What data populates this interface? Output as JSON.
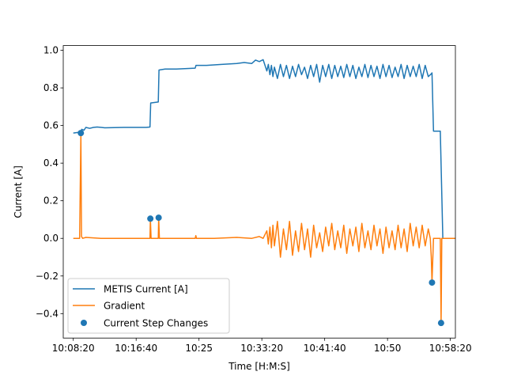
{
  "chart_data": {
    "type": "line",
    "xlabel": "Time [H:M:S]",
    "ylabel": "Current [A]",
    "xlim": [
      "10:07:00",
      "10:59:00"
    ],
    "ylim": [
      -0.53,
      1.025
    ],
    "x_ticks": [
      "10:08:20",
      "10:16:40",
      "10:25",
      "10:33:20",
      "10:41:40",
      "10:50",
      "10:58:20"
    ],
    "x_tick_times": [
      "10:08:20",
      "10:16:40",
      "10:25:00",
      "10:33:20",
      "10:41:40",
      "10:50:00",
      "10:58:20"
    ],
    "y_ticks": [
      "−0.4",
      "−0.2",
      "0.0",
      "0.2",
      "0.4",
      "0.6",
      "0.8",
      "1.0"
    ],
    "y_tick_values": [
      -0.4,
      -0.2,
      0.0,
      0.2,
      0.4,
      0.6,
      0.8,
      1.0
    ],
    "grid": false,
    "legend_position": "lower-left",
    "colors": {
      "current": "#1f77b4",
      "gradient": "#ff7f0e",
      "steps": "#1f77b4"
    },
    "series": [
      {
        "name": "METIS Current [A]",
        "style": "line",
        "x": [
          "10:08:20",
          "10:09:20",
          "10:09:27",
          "10:09:45",
          "10:10:00",
          "10:10:30",
          "10:11:00",
          "10:11:30",
          "10:12:30",
          "10:15:00",
          "10:18:00",
          "10:18:30",
          "10:18:36",
          "10:19:36",
          "10:19:42",
          "10:20:30",
          "10:22:00",
          "10:24:30",
          "10:24:36",
          "10:26:00",
          "10:28:00",
          "10:30:00",
          "10:31:00",
          "10:32:00",
          "10:32:30",
          "10:33:00",
          "10:33:30",
          "10:34:00",
          "10:34:12",
          "10:34:24",
          "10:34:36",
          "10:34:48",
          "10:35:00",
          "10:35:24",
          "10:35:48",
          "10:36:12",
          "10:36:36",
          "10:37:00",
          "10:37:24",
          "10:37:48",
          "10:38:12",
          "10:38:36",
          "10:39:00",
          "10:39:24",
          "10:39:48",
          "10:40:12",
          "10:40:36",
          "10:41:00",
          "10:41:24",
          "10:41:48",
          "10:42:12",
          "10:42:36",
          "10:43:00",
          "10:43:24",
          "10:43:48",
          "10:44:12",
          "10:44:36",
          "10:45:00",
          "10:45:24",
          "10:45:48",
          "10:46:12",
          "10:46:36",
          "10:47:00",
          "10:47:24",
          "10:47:48",
          "10:48:12",
          "10:48:36",
          "10:49:00",
          "10:49:24",
          "10:49:48",
          "10:50:12",
          "10:50:36",
          "10:51:00",
          "10:51:24",
          "10:51:48",
          "10:52:12",
          "10:52:36",
          "10:53:00",
          "10:53:24",
          "10:53:48",
          "10:54:12",
          "10:54:36",
          "10:55:00",
          "10:55:24",
          "10:55:48",
          "10:55:54",
          "10:56:06",
          "10:56:18",
          "10:56:30",
          "10:57:00",
          "10:57:20",
          "10:57:30"
        ],
        "values": [
          0.56,
          0.565,
          0.58,
          0.575,
          0.59,
          0.585,
          0.59,
          0.592,
          0.588,
          0.59,
          0.59,
          0.592,
          0.72,
          0.725,
          0.895,
          0.9,
          0.9,
          0.905,
          0.92,
          0.92,
          0.925,
          0.93,
          0.935,
          0.93,
          0.948,
          0.94,
          0.95,
          0.89,
          0.925,
          0.87,
          0.92,
          0.86,
          0.91,
          0.85,
          0.925,
          0.86,
          0.92,
          0.85,
          0.915,
          0.86,
          0.925,
          0.87,
          0.91,
          0.85,
          0.92,
          0.86,
          0.925,
          0.83,
          0.92,
          0.86,
          0.925,
          0.85,
          0.92,
          0.86,
          0.915,
          0.855,
          0.925,
          0.86,
          0.92,
          0.85,
          0.91,
          0.86,
          0.925,
          0.855,
          0.92,
          0.86,
          0.915,
          0.85,
          0.925,
          0.86,
          0.92,
          0.855,
          0.91,
          0.86,
          0.925,
          0.85,
          0.92,
          0.86,
          0.915,
          0.86,
          0.925,
          0.85,
          0.92,
          0.86,
          0.875,
          0.88,
          0.57,
          0.57,
          0.57,
          0.57,
          0.0,
          0.0
        ]
      },
      {
        "name": "Gradient",
        "style": "line",
        "x": [
          "10:08:20",
          "10:09:10",
          "10:09:20",
          "10:09:25",
          "10:09:35",
          "10:10:00",
          "10:12:00",
          "10:15:00",
          "10:18:30",
          "10:18:33",
          "10:18:39",
          "10:19:36",
          "10:19:39",
          "10:19:45",
          "10:21:00",
          "10:24:30",
          "10:24:35",
          "10:24:40",
          "10:27:00",
          "10:30:00",
          "10:32:00",
          "10:33:00",
          "10:33:30",
          "10:34:00",
          "10:34:12",
          "10:34:24",
          "10:34:36",
          "10:34:48",
          "10:35:00",
          "10:35:24",
          "10:35:48",
          "10:36:12",
          "10:36:36",
          "10:37:00",
          "10:37:24",
          "10:37:48",
          "10:38:12",
          "10:38:36",
          "10:39:00",
          "10:39:24",
          "10:39:48",
          "10:40:12",
          "10:40:36",
          "10:41:00",
          "10:41:24",
          "10:41:48",
          "10:42:12",
          "10:42:36",
          "10:43:00",
          "10:43:24",
          "10:43:48",
          "10:44:12",
          "10:44:36",
          "10:45:00",
          "10:45:24",
          "10:45:48",
          "10:46:12",
          "10:46:36",
          "10:47:00",
          "10:47:24",
          "10:47:48",
          "10:48:12",
          "10:48:36",
          "10:49:00",
          "10:49:24",
          "10:49:48",
          "10:50:12",
          "10:50:36",
          "10:51:00",
          "10:51:24",
          "10:51:48",
          "10:52:12",
          "10:52:36",
          "10:53:00",
          "10:53:24",
          "10:53:48",
          "10:54:12",
          "10:54:36",
          "10:55:00",
          "10:55:24",
          "10:55:40",
          "10:55:48",
          "10:55:54",
          "10:56:06",
          "10:56:30",
          "10:57:00",
          "10:57:06",
          "10:57:12",
          "10:57:20",
          "10:58:00",
          "10:59:00"
        ],
        "values": [
          0.0,
          0.0,
          0.56,
          0.01,
          0.0,
          0.005,
          0.0,
          0.0,
          0.0,
          0.105,
          0.0,
          0.0,
          0.11,
          0.0,
          0.0,
          0.0,
          0.015,
          0.0,
          0.0,
          0.005,
          0.0,
          0.01,
          0.0,
          0.04,
          -0.03,
          0.06,
          -0.05,
          0.07,
          -0.04,
          0.09,
          -0.1,
          0.05,
          -0.06,
          0.09,
          -0.09,
          0.04,
          -0.07,
          0.08,
          -0.06,
          0.05,
          -0.1,
          0.07,
          -0.05,
          0.03,
          -0.07,
          0.06,
          -0.04,
          0.08,
          -0.06,
          0.04,
          -0.05,
          0.07,
          -0.08,
          0.05,
          -0.04,
          0.06,
          -0.07,
          0.08,
          -0.05,
          0.04,
          -0.06,
          0.07,
          -0.04,
          0.05,
          -0.08,
          0.06,
          -0.05,
          0.04,
          -0.06,
          0.07,
          -0.05,
          0.05,
          -0.07,
          0.08,
          -0.04,
          0.06,
          -0.05,
          0.07,
          -0.04,
          0.05,
          0.0,
          -0.1,
          -0.235,
          0.0,
          0.0,
          0.0,
          -0.45,
          0.0,
          0.0,
          0.0,
          0.0
        ]
      },
      {
        "name": "Current Step Changes",
        "style": "scatter",
        "x": [
          "10:09:20",
          "10:18:33",
          "10:19:39",
          "10:55:54",
          "10:57:06"
        ],
        "values": [
          0.56,
          0.105,
          0.11,
          -0.235,
          -0.45
        ]
      }
    ]
  }
}
